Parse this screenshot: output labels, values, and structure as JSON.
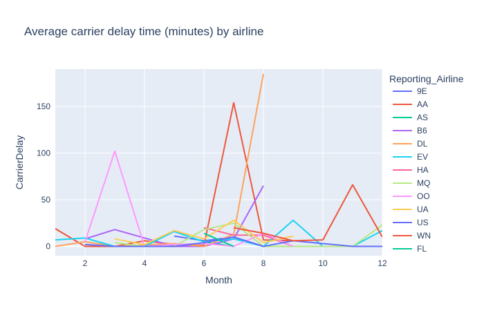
{
  "chart_data": {
    "type": "line",
    "title": "Average carrier delay time (minutes) by airline",
    "xlabel": "Month",
    "ylabel": "CarrierDelay",
    "xlim": [
      1,
      12
    ],
    "ylim": [
      -10,
      190
    ],
    "x_ticks": [
      2,
      4,
      6,
      8,
      10,
      12
    ],
    "y_ticks": [
      0,
      50,
      100,
      150
    ],
    "grid": true,
    "plot_bgcolor": "#e5ecf6",
    "legend": {
      "title": "Reporting_Airline",
      "position": "right"
    },
    "series": [
      {
        "name": "9E",
        "color": "#636efa",
        "x": [
          5,
          6,
          7,
          8,
          9
        ],
        "y": [
          11,
          6,
          10,
          0,
          0
        ]
      },
      {
        "name": "AA",
        "color": "#EF553B",
        "x": [
          1,
          2,
          3,
          4,
          5,
          6,
          7,
          8,
          9
        ],
        "y": [
          19,
          0,
          0,
          6,
          2,
          1,
          154,
          7,
          6
        ]
      },
      {
        "name": "AS",
        "color": "#00cc96",
        "x": [
          5,
          6,
          7
        ],
        "y": [
          16,
          5,
          0
        ]
      },
      {
        "name": "B6",
        "color": "#ab63fa",
        "x": [
          2,
          3,
          5,
          6,
          7,
          8
        ],
        "y": [
          8,
          18,
          0,
          0,
          8,
          65
        ]
      },
      {
        "name": "DL",
        "color": "#FFA15A",
        "x": [
          1,
          2,
          3,
          5,
          6,
          7,
          8
        ],
        "y": [
          0,
          5,
          0,
          3,
          0,
          13,
          185
        ]
      },
      {
        "name": "EV",
        "color": "#19d3f3",
        "x": [
          1,
          2,
          3,
          4,
          5,
          6,
          7,
          8,
          9,
          10,
          11,
          12
        ],
        "y": [
          7,
          9,
          0,
          0,
          16,
          5,
          8,
          0,
          28,
          0,
          0,
          17
        ]
      },
      {
        "name": "HA",
        "color": "#FF6692",
        "x": [
          6,
          7,
          8,
          9
        ],
        "y": [
          20,
          12,
          12,
          0
        ]
      },
      {
        "name": "MQ",
        "color": "#B6E880",
        "x": [
          3,
          4,
          5,
          6,
          7,
          8,
          11,
          12
        ],
        "y": [
          4,
          0,
          0,
          18,
          25,
          0,
          0,
          23
        ]
      },
      {
        "name": "OO",
        "color": "#FF97FF",
        "x": [
          2,
          3,
          4,
          5,
          6,
          7,
          8,
          9
        ],
        "y": [
          5,
          102,
          0,
          2,
          3,
          0,
          14,
          0
        ]
      },
      {
        "name": "UA",
        "color": "#FECB52",
        "x": [
          3,
          4,
          5,
          6,
          7,
          8,
          9
        ],
        "y": [
          8,
          2,
          17,
          8,
          28,
          4,
          11
        ]
      },
      {
        "name": "US",
        "color": "#636efa",
        "x": [
          2,
          3,
          4,
          5,
          6,
          7,
          8,
          9,
          11,
          12
        ],
        "y": [
          2,
          0,
          0,
          0,
          4,
          10,
          0,
          6,
          0,
          0
        ]
      },
      {
        "name": "WN",
        "color": "#EF553B",
        "x": [
          7,
          8,
          9,
          10,
          11,
          12
        ],
        "y": [
          20,
          14,
          6,
          7,
          66,
          10
        ]
      },
      {
        "name": "FL",
        "color": "#00cc96",
        "x": [
          6,
          7
        ],
        "y": [
          14,
          0
        ]
      }
    ]
  }
}
